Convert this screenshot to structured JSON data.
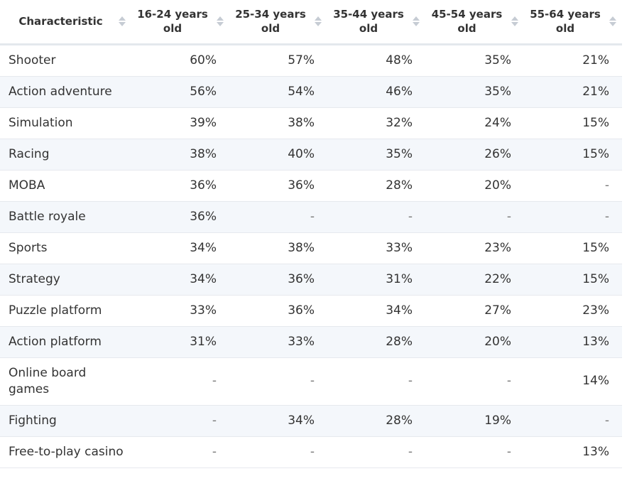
{
  "table": {
    "headers": [
      "Characteristic",
      "16-24 years old",
      "25-34 years old",
      "35-44 years old",
      "45-54 years old",
      "55-64 years old"
    ],
    "rows": [
      {
        "label": "Shooter",
        "values": [
          "60%",
          "57%",
          "48%",
          "35%",
          "21%"
        ]
      },
      {
        "label": "Action adventure",
        "values": [
          "56%",
          "54%",
          "46%",
          "35%",
          "21%"
        ]
      },
      {
        "label": "Simulation",
        "values": [
          "39%",
          "38%",
          "32%",
          "24%",
          "15%"
        ]
      },
      {
        "label": "Racing",
        "values": [
          "38%",
          "40%",
          "35%",
          "26%",
          "15%"
        ]
      },
      {
        "label": "MOBA",
        "values": [
          "36%",
          "36%",
          "28%",
          "20%",
          "-"
        ]
      },
      {
        "label": "Battle royale",
        "values": [
          "36%",
          "-",
          "-",
          "-",
          "-"
        ]
      },
      {
        "label": "Sports",
        "values": [
          "34%",
          "38%",
          "33%",
          "23%",
          "15%"
        ]
      },
      {
        "label": "Strategy",
        "values": [
          "34%",
          "36%",
          "31%",
          "22%",
          "15%"
        ]
      },
      {
        "label": "Puzzle platform",
        "values": [
          "33%",
          "36%",
          "34%",
          "27%",
          "23%"
        ]
      },
      {
        "label": "Action platform",
        "values": [
          "31%",
          "33%",
          "28%",
          "20%",
          "13%"
        ]
      },
      {
        "label": "Online board games",
        "values": [
          "-",
          "-",
          "-",
          "-",
          "14%"
        ]
      },
      {
        "label": "Fighting",
        "values": [
          "-",
          "34%",
          "28%",
          "19%",
          "-"
        ]
      },
      {
        "label": "Free-to-play casino",
        "values": [
          "-",
          "-",
          "-",
          "-",
          "13%"
        ]
      }
    ]
  },
  "chart_data": {
    "type": "table",
    "columns": [
      "Characteristic",
      "16-24 years old",
      "25-34 years old",
      "35-44 years old",
      "45-54 years old",
      "55-64 years old"
    ],
    "categories": [
      "Shooter",
      "Action adventure",
      "Simulation",
      "Racing",
      "MOBA",
      "Battle royale",
      "Sports",
      "Strategy",
      "Puzzle platform",
      "Action platform",
      "Online board games",
      "Fighting",
      "Free-to-play casino"
    ],
    "series": [
      {
        "name": "16-24 years old",
        "values": [
          60,
          56,
          39,
          38,
          36,
          36,
          34,
          34,
          33,
          31,
          null,
          null,
          null
        ]
      },
      {
        "name": "25-34 years old",
        "values": [
          57,
          54,
          38,
          40,
          36,
          null,
          38,
          36,
          36,
          33,
          null,
          34,
          null
        ]
      },
      {
        "name": "35-44 years old",
        "values": [
          48,
          46,
          32,
          35,
          28,
          null,
          33,
          31,
          34,
          28,
          null,
          28,
          null
        ]
      },
      {
        "name": "45-54 years old",
        "values": [
          35,
          35,
          24,
          26,
          20,
          null,
          23,
          22,
          27,
          20,
          null,
          19,
          null
        ]
      },
      {
        "name": "55-64 years old",
        "values": [
          21,
          21,
          15,
          15,
          null,
          null,
          15,
          15,
          23,
          13,
          14,
          null,
          13
        ]
      }
    ],
    "unit": "%"
  }
}
